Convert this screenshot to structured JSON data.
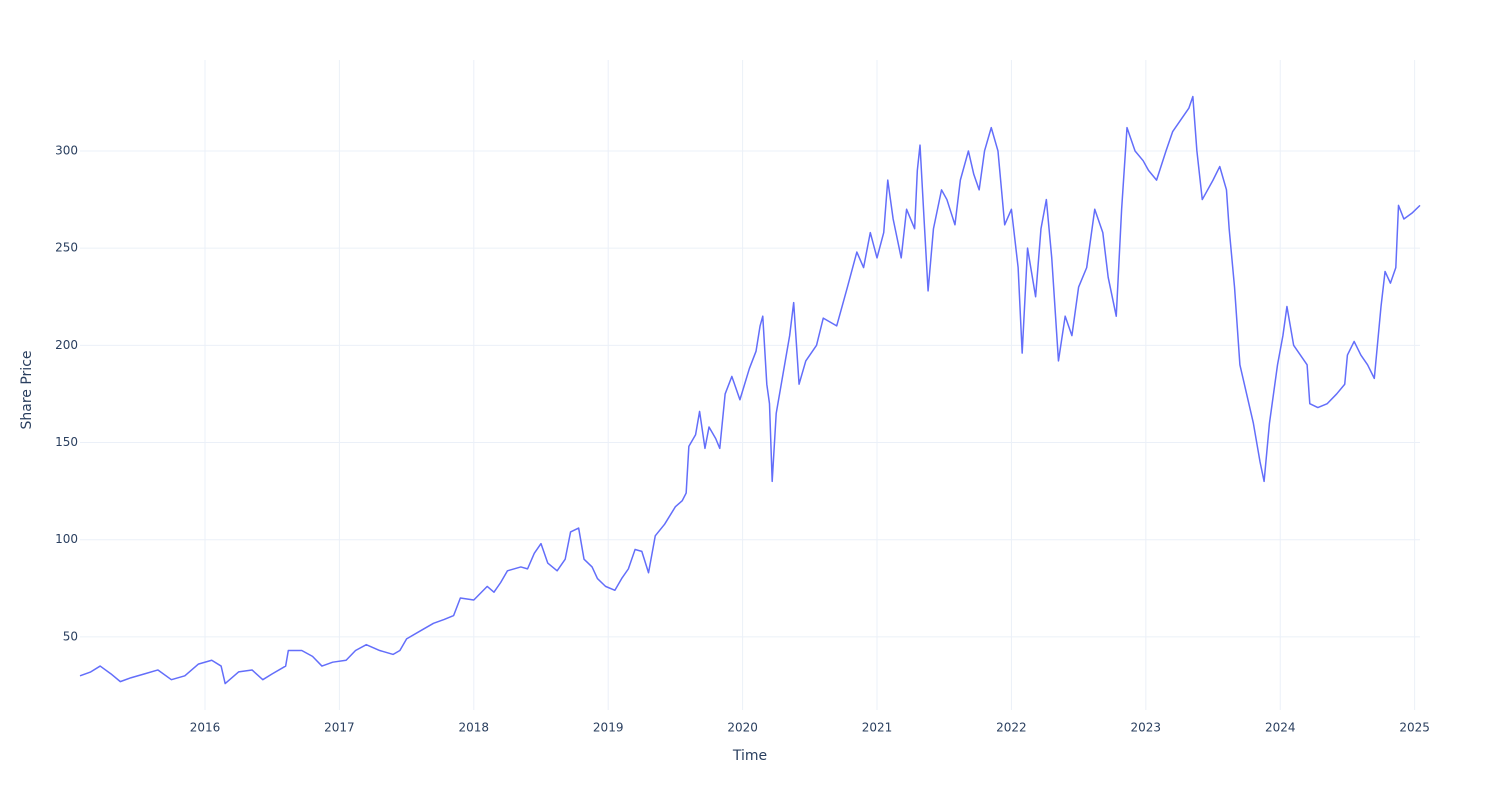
{
  "chart_data": {
    "type": "line",
    "x_label": "Time",
    "y_label": "Share Price",
    "color": "#636efa",
    "grid": true,
    "xlim": [
      2015.07,
      2025.04
    ],
    "xticks": [
      2016,
      2017,
      2018,
      2019,
      2020,
      2021,
      2022,
      2023,
      2024,
      2025
    ],
    "ylim": [
      12.4,
      346.8
    ],
    "yticks": [
      50,
      100,
      150,
      200,
      250,
      300
    ],
    "x": [
      2015.07,
      2015.15,
      2015.22,
      2015.3,
      2015.37,
      2015.45,
      2015.55,
      2015.65,
      2015.75,
      2015.85,
      2015.95,
      2016.05,
      2016.12,
      2016.15,
      2016.25,
      2016.35,
      2016.43,
      2016.5,
      2016.6,
      2016.62,
      2016.72,
      2016.8,
      2016.87,
      2016.95,
      2017.05,
      2017.12,
      2017.2,
      2017.3,
      2017.4,
      2017.45,
      2017.5,
      2017.6,
      2017.7,
      2017.78,
      2017.85,
      2017.9,
      2018.0,
      2018.1,
      2018.15,
      2018.2,
      2018.25,
      2018.35,
      2018.4,
      2018.45,
      2018.5,
      2018.55,
      2018.62,
      2018.68,
      2018.72,
      2018.78,
      2018.82,
      2018.88,
      2018.92,
      2018.98,
      2019.05,
      2019.1,
      2019.15,
      2019.2,
      2019.25,
      2019.3,
      2019.35,
      2019.42,
      2019.5,
      2019.55,
      2019.58,
      2019.6,
      2019.65,
      2019.68,
      2019.72,
      2019.75,
      2019.8,
      2019.83,
      2019.87,
      2019.92,
      2019.98,
      2020.05,
      2020.1,
      2020.13,
      2020.15,
      2020.18,
      2020.2,
      2020.22,
      2020.25,
      2020.3,
      2020.35,
      2020.38,
      2020.42,
      2020.47,
      2020.55,
      2020.6,
      2020.7,
      2020.78,
      2020.85,
      2020.9,
      2020.95,
      2021.0,
      2021.05,
      2021.08,
      2021.12,
      2021.18,
      2021.22,
      2021.28,
      2021.3,
      2021.32,
      2021.35,
      2021.38,
      2021.42,
      2021.48,
      2021.52,
      2021.58,
      2021.62,
      2021.68,
      2021.72,
      2021.76,
      2021.8,
      2021.85,
      2021.9,
      2021.95,
      2022.0,
      2022.05,
      2022.08,
      2022.12,
      2022.18,
      2022.22,
      2022.26,
      2022.3,
      2022.35,
      2022.4,
      2022.45,
      2022.5,
      2022.56,
      2022.62,
      2022.68,
      2022.72,
      2022.78,
      2022.82,
      2022.86,
      2022.92,
      2022.98,
      2023.02,
      2023.08,
      2023.15,
      2023.2,
      2023.25,
      2023.32,
      2023.35,
      2023.38,
      2023.42,
      2023.5,
      2023.55,
      2023.6,
      2023.62,
      2023.66,
      2023.7,
      2023.75,
      2023.8,
      2023.85,
      2023.88,
      2023.92,
      2023.98,
      2024.02,
      2024.05,
      2024.1,
      2024.15,
      2024.2,
      2024.22,
      2024.28,
      2024.35,
      2024.42,
      2024.48,
      2024.5,
      2024.55,
      2024.6,
      2024.65,
      2024.7,
      2024.75,
      2024.78,
      2024.82,
      2024.86,
      2024.88,
      2024.92,
      2024.98,
      2025.04
    ],
    "values": [
      30,
      32,
      35,
      31,
      27,
      29,
      31,
      33,
      28,
      30,
      36,
      38,
      35,
      26,
      32,
      33,
      28,
      31,
      35,
      43,
      43,
      40,
      35,
      37,
      38,
      43,
      46,
      43,
      41,
      43,
      49,
      53,
      57,
      59,
      61,
      70,
      69,
      76,
      73,
      78,
      84,
      86,
      85,
      93,
      98,
      88,
      84,
      90,
      104,
      106,
      90,
      86,
      80,
      76,
      74,
      80,
      85,
      95,
      94,
      83,
      102,
      108,
      117,
      120,
      124,
      148,
      154,
      166,
      147,
      158,
      152,
      147,
      175,
      184,
      172,
      188,
      197,
      210,
      215,
      180,
      170,
      130,
      165,
      185,
      205,
      222,
      180,
      192,
      200,
      214,
      210,
      230,
      248,
      240,
      258,
      245,
      258,
      285,
      265,
      245,
      270,
      260,
      290,
      303,
      265,
      228,
      260,
      280,
      275,
      262,
      285,
      300,
      288,
      280,
      300,
      312,
      300,
      262,
      270,
      240,
      196,
      250,
      225,
      260,
      275,
      245,
      192,
      215,
      205,
      230,
      240,
      270,
      258,
      235,
      215,
      270,
      312,
      300,
      295,
      290,
      285,
      300,
      310,
      315,
      322,
      328,
      300,
      275,
      285,
      292,
      280,
      260,
      230,
      190,
      175,
      160,
      140,
      130,
      160,
      190,
      205,
      220,
      200,
      195,
      190,
      170,
      168,
      170,
      175,
      180,
      195,
      202,
      195,
      190,
      183,
      220,
      238,
      232,
      240,
      272,
      265,
      268,
      272
    ]
  }
}
